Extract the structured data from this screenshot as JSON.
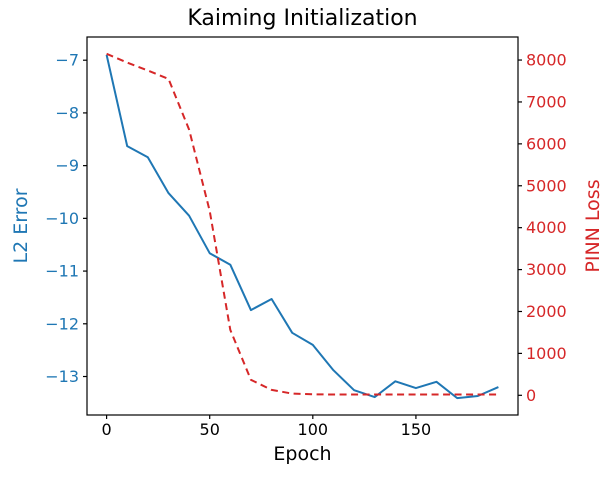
{
  "chart_data": {
    "type": "line",
    "title": "Kaiming Initialization",
    "xlabel": "Epoch",
    "grid": false,
    "legend": null,
    "x": [
      0,
      10,
      20,
      30,
      40,
      50,
      60,
      70,
      80,
      90,
      100,
      110,
      120,
      130,
      140,
      150,
      160,
      170,
      180,
      190
    ],
    "series": [
      {
        "name": "L2 Error",
        "axis": "left",
        "color": "#1f77b4",
        "style": "solid",
        "values": [
          -6.9,
          -8.63,
          -8.84,
          -9.52,
          -9.95,
          -10.66,
          -10.88,
          -11.74,
          -11.53,
          -12.17,
          -12.4,
          -12.88,
          -13.26,
          -13.39,
          -13.09,
          -13.22,
          -13.1,
          -13.41,
          -13.37,
          -13.2
        ]
      },
      {
        "name": "PINN Loss",
        "axis": "right",
        "color": "#d62728",
        "style": "dashed",
        "values": [
          8150,
          7940,
          7750,
          7550,
          6340,
          4400,
          1560,
          370,
          130,
          40,
          25,
          20,
          20,
          20,
          20,
          20,
          20,
          20,
          20,
          20
        ]
      }
    ],
    "axes": {
      "x": {
        "label": "Epoch",
        "ticks": [
          0,
          50,
          100,
          150
        ],
        "lim": [
          -9.5,
          199.5
        ],
        "color": "#000000"
      },
      "left": {
        "label": "L2 Error",
        "ticks": [
          -7,
          -8,
          -9,
          -10,
          -11,
          -12,
          -13
        ],
        "lim": [
          -13.73,
          -6.56
        ],
        "color": "#1f77b4"
      },
      "right": {
        "label": "PINN Loss",
        "ticks": [
          0,
          1000,
          2000,
          3000,
          4000,
          5000,
          6000,
          7000,
          8000
        ],
        "lim": [
          -470,
          8550
        ],
        "color": "#d62728"
      }
    }
  }
}
